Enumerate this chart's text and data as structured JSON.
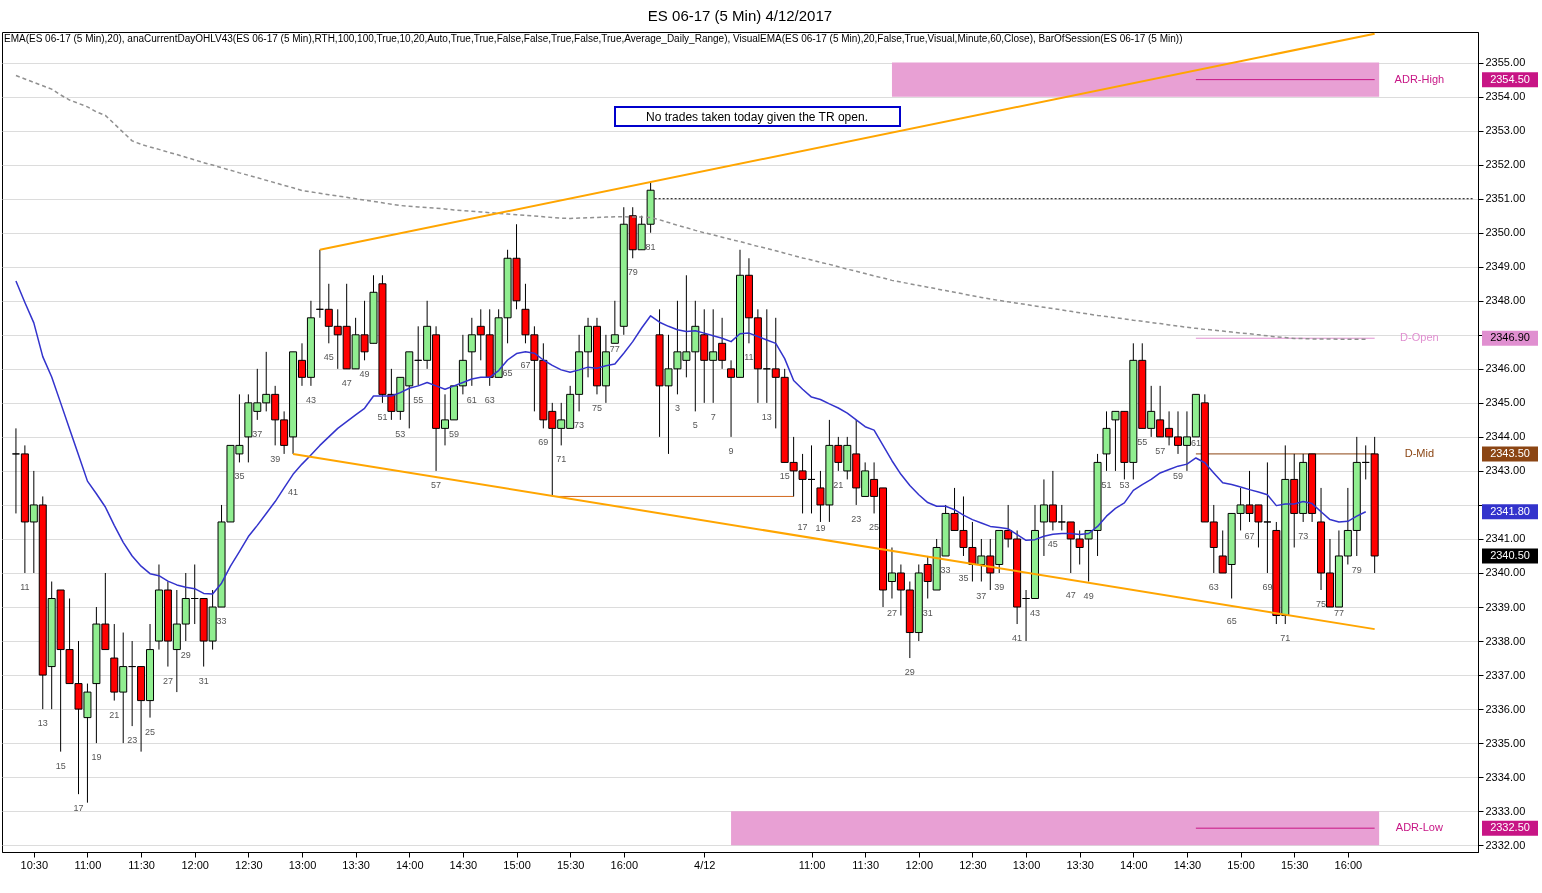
{
  "chart_data": {
    "type": "candlestick",
    "title": "ES 06-17 (5 Min)  4/12/2017",
    "categories": [
      null,
      null,
      "10:30",
      null,
      null,
      null,
      null,
      null,
      "11:00",
      null,
      null,
      null,
      null,
      null,
      "11:30",
      null,
      null,
      null,
      null,
      null,
      "12:00",
      null,
      null,
      null,
      null,
      null,
      "12:30",
      null,
      null,
      null,
      null,
      null,
      "13:00",
      null,
      null,
      null,
      null,
      null,
      "13:30",
      null,
      null,
      null,
      null,
      null,
      "14:00",
      null,
      null,
      null,
      null,
      null,
      "14:30",
      null,
      null,
      null,
      null,
      null,
      "15:00",
      null,
      null,
      null,
      null,
      null,
      "15:30",
      null,
      null,
      null,
      null,
      null,
      "16:00",
      null,
      null,
      null,
      null,
      null,
      null,
      null,
      null,
      "4/12",
      null,
      null,
      null,
      null,
      null,
      null,
      null,
      null,
      null,
      null,
      null,
      "11:00",
      null,
      null,
      null,
      null,
      null,
      "11:30",
      null,
      null,
      null,
      null,
      null,
      "12:00",
      null,
      null,
      null,
      null,
      null,
      "12:30",
      null,
      null,
      null,
      null,
      null,
      "13:00",
      null,
      null,
      null,
      null,
      null,
      "13:30",
      null,
      null,
      null,
      null,
      null,
      "14:00",
      null,
      null,
      null,
      null,
      null,
      "14:30",
      null,
      null,
      null,
      null,
      null,
      "15:00",
      null,
      null,
      null,
      null,
      null,
      "15:30",
      null,
      null,
      null,
      null,
      null,
      "16:00",
      null,
      null,
      null
    ],
    "ohlc": [
      [
        2343.5,
        2344.25,
        2341.75,
        2343.5
      ],
      [
        2343.5,
        2343.75,
        2340,
        2341.5
      ],
      [
        2341.5,
        2343,
        2340,
        2342
      ],
      [
        2342,
        2342.25,
        2336,
        2337
      ],
      [
        2337.25,
        2339.75,
        2336,
        2339.25
      ],
      [
        2339.5,
        2339.5,
        2334.75,
        2337.75
      ],
      [
        2337.75,
        2339.25,
        2336.75,
        2336.75
      ],
      [
        2336.75,
        2338,
        2333.5,
        2336
      ],
      [
        2335.75,
        2336.75,
        2333.25,
        2336.5
      ],
      [
        2336.75,
        2339,
        2335,
        2338.5
      ],
      [
        2338.5,
        2340,
        2337.75,
        2337.75
      ],
      [
        2337.5,
        2338.5,
        2336.25,
        2336.5
      ],
      [
        2336.5,
        2338.25,
        2335,
        2337.25
      ],
      [
        2337.25,
        2338,
        2335.5,
        2337.25
      ],
      [
        2337.25,
        2337.25,
        2334.75,
        2336.25
      ],
      [
        2336.25,
        2338.5,
        2335.75,
        2337.75
      ],
      [
        2338,
        2340.25,
        2337.75,
        2339.5
      ],
      [
        2339.5,
        2339.75,
        2337.25,
        2338
      ],
      [
        2337.75,
        2339.5,
        2336.5,
        2338.5
      ],
      [
        2338.5,
        2340,
        2338,
        2339.25
      ],
      [
        2339.25,
        2340.25,
        2338.5,
        2339.25
      ],
      [
        2339.25,
        2339.25,
        2337.25,
        2338
      ],
      [
        2338,
        2339.5,
        2337.75,
        2339
      ],
      [
        2339,
        2342,
        2339,
        2341.5
      ],
      [
        2341.5,
        2343.75,
        2341.5,
        2343.75
      ],
      [
        2343.5,
        2345.25,
        2343.25,
        2343.75
      ],
      [
        2344,
        2345.25,
        2343.25,
        2345
      ],
      [
        2344.75,
        2346,
        2344.5,
        2345
      ],
      [
        2345,
        2346.5,
        2344.75,
        2345.25
      ],
      [
        2345.25,
        2345.5,
        2343.75,
        2344.5
      ],
      [
        2344.5,
        2344.75,
        2343.5,
        2343.75
      ],
      [
        2344,
        2346.5,
        2343.5,
        2346.5
      ],
      [
        2346.25,
        2346.75,
        2345.5,
        2345.75
      ],
      [
        2345.75,
        2348,
        2345.5,
        2347.5
      ],
      [
        2347.75,
        2349.5,
        2347.5,
        2347.75
      ],
      [
        2347.75,
        2348.5,
        2346.75,
        2347.25
      ],
      [
        2347.25,
        2347.75,
        2346,
        2347
      ],
      [
        2347.25,
        2348.5,
        2346,
        2346
      ],
      [
        2346,
        2347.5,
        2346,
        2347
      ],
      [
        2347,
        2348,
        2346.25,
        2346.5
      ],
      [
        2346.75,
        2348.75,
        2346.75,
        2348.25
      ],
      [
        2348.5,
        2348.75,
        2345,
        2345.25
      ],
      [
        2345.25,
        2346,
        2344.5,
        2344.75
      ],
      [
        2344.75,
        2345.75,
        2344.5,
        2345.75
      ],
      [
        2345.5,
        2346.5,
        2344.25,
        2346.5
      ],
      [
        2346.25,
        2347.25,
        2345.5,
        2346.25
      ],
      [
        2346.25,
        2348,
        2346,
        2347.25
      ],
      [
        2347,
        2347.25,
        2343,
        2344.25
      ],
      [
        2344.25,
        2345.25,
        2343.75,
        2344.5
      ],
      [
        2344.5,
        2345.5,
        2344.5,
        2345.5
      ],
      [
        2345.5,
        2347,
        2345.25,
        2346.25
      ],
      [
        2346.5,
        2347.5,
        2345.5,
        2347
      ],
      [
        2347.25,
        2347.75,
        2346.25,
        2347
      ],
      [
        2347,
        2347.75,
        2345.5,
        2345.75
      ],
      [
        2345.75,
        2347.75,
        2345.75,
        2347.5
      ],
      [
        2347.5,
        2349.5,
        2346.75,
        2349.25
      ],
      [
        2349.25,
        2350.25,
        2347.75,
        2348
      ],
      [
        2347.75,
        2348.5,
        2346.75,
        2347
      ],
      [
        2347,
        2347.25,
        2344.75,
        2346.25
      ],
      [
        2346.25,
        2346.75,
        2344.25,
        2344.5
      ],
      [
        2344.75,
        2345,
        2342.25,
        2344.25
      ],
      [
        2344.25,
        2345,
        2343.75,
        2344.5
      ],
      [
        2344.25,
        2345.5,
        2344.25,
        2345.25
      ],
      [
        2345.25,
        2347,
        2344.75,
        2346.5
      ],
      [
        2346.5,
        2347.5,
        2345.75,
        2347.25
      ],
      [
        2347.25,
        2347.5,
        2345.25,
        2345.5
      ],
      [
        2345.5,
        2347,
        2345,
        2346.5
      ],
      [
        2346.75,
        2348,
        2346.75,
        2347
      ],
      [
        2347.25,
        2350.75,
        2347,
        2350.25
      ],
      [
        2350.5,
        2350.75,
        2349.25,
        2349.5
      ],
      [
        2349.5,
        2350.5,
        2349.5,
        2350.25
      ],
      [
        2350.25,
        2351.5,
        2350,
        2351.25
      ],
      [
        2347,
        2347.75,
        2344,
        2345.5
      ],
      [
        2345.5,
        2347,
        2343.5,
        2346
      ],
      [
        2346,
        2348,
        2345.25,
        2346.5
      ],
      [
        2346.25,
        2348.75,
        2345.75,
        2346.5
      ],
      [
        2346.5,
        2348,
        2344.75,
        2347.25
      ],
      [
        2347,
        2347.75,
        2345,
        2346.25
      ],
      [
        2346.25,
        2347.75,
        2345,
        2346.5
      ],
      [
        2346.75,
        2347.5,
        2346,
        2346.25
      ],
      [
        2346,
        2346.25,
        2344,
        2345.75
      ],
      [
        2345.75,
        2349.5,
        2345.75,
        2348.75
      ],
      [
        2348.75,
        2349.25,
        2346.75,
        2347.5
      ],
      [
        2347.5,
        2347.75,
        2345,
        2346
      ],
      [
        2346,
        2347.75,
        2345,
        2346
      ],
      [
        2346,
        2347.5,
        2344.25,
        2345.75
      ],
      [
        2345.75,
        2346,
        2343.25,
        2343.25
      ],
      [
        2343.25,
        2344,
        2342.25,
        2343
      ],
      [
        2343,
        2343.5,
        2341.75,
        2342.75
      ],
      [
        2342.75,
        2343.75,
        2341.75,
        2342.75
      ],
      [
        2342.5,
        2343,
        2341.5,
        2342
      ],
      [
        2342,
        2344.5,
        2341.5,
        2343.75
      ],
      [
        2343.75,
        2344,
        2343,
        2343.25
      ],
      [
        2343,
        2344,
        2342.75,
        2343.75
      ],
      [
        2343.5,
        2344.5,
        2342,
        2342.5
      ],
      [
        2342.25,
        2343.25,
        2342.25,
        2343
      ],
      [
        2342.75,
        2343.25,
        2341.75,
        2342.25
      ],
      [
        2342.5,
        2342.5,
        2339,
        2339.5
      ],
      [
        2339.75,
        2340.75,
        2339.25,
        2340
      ],
      [
        2340,
        2340.25,
        2338.75,
        2339.5
      ],
      [
        2339.5,
        2339.75,
        2337.5,
        2338.25
      ],
      [
        2338.25,
        2340.25,
        2338,
        2340
      ],
      [
        2340.25,
        2340.5,
        2339.25,
        2339.75
      ],
      [
        2339.5,
        2341,
        2339.5,
        2340.75
      ],
      [
        2340.5,
        2342,
        2340.5,
        2341.75
      ],
      [
        2341.75,
        2342.5,
        2341.25,
        2341.25
      ],
      [
        2341.25,
        2342.25,
        2340.5,
        2340.75
      ],
      [
        2340.75,
        2341.5,
        2339.75,
        2340.25
      ],
      [
        2340.25,
        2341,
        2339.75,
        2340.5
      ],
      [
        2340.5,
        2341,
        2339.5,
        2340
      ],
      [
        2340.25,
        2341.25,
        2340,
        2341.25
      ],
      [
        2341.25,
        2342,
        2340.75,
        2341
      ],
      [
        2341,
        2341.25,
        2338.5,
        2339
      ],
      [
        2339.25,
        2339.5,
        2338,
        2339.25
      ],
      [
        2339.25,
        2342,
        2339.25,
        2341.25
      ],
      [
        2341.5,
        2342.75,
        2340.5,
        2342
      ],
      [
        2342,
        2343,
        2341.25,
        2341.5
      ],
      [
        2341.5,
        2342,
        2341.25,
        2341.5
      ],
      [
        2341.5,
        2341.5,
        2340,
        2341
      ],
      [
        2341,
        2341.25,
        2340.25,
        2340.75
      ],
      [
        2341,
        2341.25,
        2339.75,
        2341.25
      ],
      [
        2341.25,
        2343.5,
        2340.5,
        2343.25
      ],
      [
        2343.5,
        2344.75,
        2343,
        2344.25
      ],
      [
        2344.5,
        2344.75,
        2343,
        2344.75
      ],
      [
        2344.75,
        2344.75,
        2342.75,
        2343.25
      ],
      [
        2343.25,
        2346.75,
        2342.75,
        2346.25
      ],
      [
        2346.25,
        2346.75,
        2344.25,
        2344.25
      ],
      [
        2344.25,
        2345.5,
        2344,
        2344.75
      ],
      [
        2344.5,
        2345.5,
        2344,
        2344
      ],
      [
        2344.25,
        2344.75,
        2343.75,
        2344
      ],
      [
        2344,
        2344.75,
        2343.5,
        2343.75
      ],
      [
        2343.75,
        2344.75,
        2343,
        2344
      ],
      [
        2344,
        2345.25,
        2344,
        2345.25
      ],
      [
        2345,
        2345.25,
        2341.5,
        2341.5
      ],
      [
        2341.5,
        2342,
        2340,
        2340.75
      ],
      [
        2340.5,
        2341.25,
        2340,
        2340
      ],
      [
        2340.25,
        2341.75,
        2339.25,
        2341.75
      ],
      [
        2341.75,
        2342.5,
        2341.25,
        2342
      ],
      [
        2342,
        2343,
        2341.5,
        2341.75
      ],
      [
        2342,
        2342,
        2340.75,
        2341.5
      ],
      [
        2341.5,
        2343.25,
        2340,
        2341.5
      ],
      [
        2341.25,
        2341.5,
        2338.5,
        2338.75
      ],
      [
        2338.75,
        2343.75,
        2338.5,
        2342.75
      ],
      [
        2342.75,
        2343.5,
        2340.75,
        2341.75
      ],
      [
        2341.75,
        2343.5,
        2341.5,
        2343.25
      ],
      [
        2343.5,
        2343.5,
        2341.5,
        2341.75
      ],
      [
        2341.5,
        2342.5,
        2339.5,
        2340
      ],
      [
        2340,
        2341,
        2339,
        2339
      ],
      [
        2339,
        2341.25,
        2339,
        2340.5
      ],
      [
        2340.5,
        2342.5,
        2340.25,
        2341.25
      ],
      [
        2341.25,
        2344,
        2340.5,
        2343.25
      ],
      [
        2343.25,
        2343.75,
        2342.75,
        2343.25
      ],
      [
        2343.5,
        2344,
        2340,
        2340.5
      ]
    ],
    "colors": [
      "#000000",
      "#ff0000",
      "#90ee90",
      "#ff0000",
      "#90ee90",
      "#ff0000",
      "#ff0000",
      "#ff0000",
      "#90ee90",
      "#90ee90",
      "#ff0000",
      "#ff0000",
      "#90ee90",
      "#000000",
      "#ff0000",
      "#90ee90",
      "#90ee90",
      "#ff0000",
      "#90ee90",
      "#90ee90",
      "#000000",
      "#ff0000",
      "#90ee90",
      "#90ee90",
      "#90ee90",
      "#90ee90",
      "#90ee90",
      "#90ee90",
      "#90ee90",
      "#ff0000",
      "#ff0000",
      "#90ee90",
      "#ff0000",
      "#90ee90",
      "#000000",
      "#ff0000",
      "#ff0000",
      "#ff0000",
      "#90ee90",
      "#ff0000",
      "#90ee90",
      "#ff0000",
      "#ff0000",
      "#90ee90",
      "#90ee90",
      "#000000",
      "#90ee90",
      "#ff0000",
      "#90ee90",
      "#90ee90",
      "#90ee90",
      "#90ee90",
      "#ff0000",
      "#ff0000",
      "#90ee90",
      "#90ee90",
      "#ff0000",
      "#ff0000",
      "#ff0000",
      "#ff0000",
      "#ff0000",
      "#90ee90",
      "#90ee90",
      "#90ee90",
      "#90ee90",
      "#ff0000",
      "#90ee90",
      "#90ee90",
      "#90ee90",
      "#ff0000",
      "#90ee90",
      "#90ee90",
      "#ff0000",
      "#90ee90",
      "#90ee90",
      "#90ee90",
      "#90ee90",
      "#ff0000",
      "#90ee90",
      "#ff0000",
      "#ff0000",
      "#90ee90",
      "#ff0000",
      "#ff0000",
      "#000000",
      "#ff0000",
      "#ff0000",
      "#ff0000",
      "#ff0000",
      "#000000",
      "#ff0000",
      "#90ee90",
      "#ff0000",
      "#90ee90",
      "#ff0000",
      "#90ee90",
      "#ff0000",
      "#ff0000",
      "#90ee90",
      "#ff0000",
      "#ff0000",
      "#90ee90",
      "#ff0000",
      "#90ee90",
      "#90ee90",
      "#ff0000",
      "#ff0000",
      "#ff0000",
      "#90ee90",
      "#ff0000",
      "#90ee90",
      "#ff0000",
      "#ff0000",
      "#000000",
      "#90ee90",
      "#90ee90",
      "#ff0000",
      "#000000",
      "#ff0000",
      "#ff0000",
      "#90ee90",
      "#90ee90",
      "#90ee90",
      "#90ee90",
      "#ff0000",
      "#90ee90",
      "#ff0000",
      "#90ee90",
      "#ff0000",
      "#ff0000",
      "#ff0000",
      "#90ee90",
      "#90ee90",
      "#ff0000",
      "#ff0000",
      "#ff0000",
      "#90ee90",
      "#90ee90",
      "#ff0000",
      "#ff0000",
      "#000000",
      "#ff0000",
      "#90ee90",
      "#ff0000",
      "#90ee90",
      "#ff0000",
      "#ff0000",
      "#ff0000",
      "#90ee90",
      "#90ee90",
      "#90ee90",
      "#000000",
      "#ff0000"
    ],
    "value_labels": [
      null,
      "11",
      null,
      "13",
      null,
      "15",
      null,
      "17",
      null,
      "19",
      null,
      "21",
      null,
      "23",
      null,
      "25",
      null,
      "27",
      null,
      "29",
      null,
      "31",
      null,
      "33",
      null,
      "35",
      null,
      "37",
      null,
      "39",
      null,
      "41",
      null,
      "43",
      null,
      "45",
      null,
      "47",
      null,
      "49",
      null,
      "51",
      null,
      "53",
      null,
      "55",
      null,
      "57",
      null,
      "59",
      null,
      "61",
      null,
      "63",
      null,
      "65",
      null,
      "67",
      null,
      "69",
      null,
      "71",
      null,
      "73",
      null,
      "75",
      null,
      "77",
      null,
      "79",
      null,
      "81",
      null,
      null,
      "3",
      null,
      "5",
      null,
      "7",
      null,
      "9",
      null,
      "11",
      null,
      "13",
      null,
      "15",
      null,
      "17",
      null,
      "19",
      null,
      "21",
      null,
      "23",
      null,
      "25",
      null,
      "27",
      null,
      "29",
      null,
      "31",
      null,
      "33",
      null,
      "35",
      null,
      "37",
      null,
      "39",
      null,
      "41",
      null,
      "43",
      null,
      "45",
      null,
      "47",
      null,
      "49",
      null,
      "51",
      null,
      "53",
      null,
      "55",
      null,
      "57",
      null,
      "59",
      null,
      "61",
      null,
      "63",
      null,
      "65",
      null,
      "67",
      null,
      "69",
      null,
      "71",
      null,
      "73",
      null,
      "75",
      null,
      "77",
      null,
      "79",
      null,
      null
    ],
    "series": [
      {
        "type": "line",
        "color": "#3333cc",
        "values": [
          2348.58,
          2347.95,
          2347.35,
          2346.36,
          2345.76,
          2345.0,
          2344.23,
          2343.47,
          2342.7,
          2342.33,
          2341.94,
          2341.4,
          2340.9,
          2340.5,
          2340.2,
          2339.98,
          2339.92,
          2339.76,
          2339.65,
          2339.58,
          2339.54,
          2339.4,
          2339.38,
          2339.7,
          2340.2,
          2340.63,
          2341.07,
          2341.4,
          2341.75,
          2342.1,
          2342.5,
          2342.9,
          2343.2,
          2343.47,
          2343.75,
          2344.0,
          2344.25,
          2344.45,
          2344.65,
          2344.84,
          2345.2,
          2345.2,
          2345.2,
          2345.3,
          2345.43,
          2345.5,
          2345.6,
          2345.5,
          2345.4,
          2345.5,
          2345.6,
          2345.7,
          2345.75,
          2345.75,
          2345.95,
          2346.26,
          2346.45,
          2346.5,
          2346.46,
          2346.26,
          2346.1,
          2345.97,
          2345.9,
          2345.97,
          2346.05,
          2346.02,
          2346.09,
          2346.14,
          2346.46,
          2346.8,
          2347.2,
          2347.56,
          2347.37,
          2347.25,
          2347.15,
          2347.1,
          2347.12,
          2347.05,
          2346.97,
          2346.9,
          2346.8,
          2347.03,
          2347.05,
          2346.95,
          2346.85,
          2346.75,
          2346.3,
          2345.66,
          2345.4,
          2345.17,
          2345.1,
          2344.97,
          2344.85,
          2344.7,
          2344.5,
          2344.3,
          2344.2,
          2343.75,
          2343.3,
          2342.9,
          2342.57,
          2342.3,
          2342.07,
          2341.96,
          2341.96,
          2341.86,
          2341.7,
          2341.57,
          2341.47,
          2341.37,
          2341.34,
          2341.3,
          2341.13,
          2340.96,
          2340.98,
          2341.08,
          2341.14,
          2341.16,
          2341.16,
          2341.13,
          2341.16,
          2341.37,
          2341.67,
          2341.9,
          2342.06,
          2342.43,
          2342.6,
          2342.75,
          2342.94,
          2343.04,
          2343.14,
          2343.2,
          2343.38,
          2343.24,
          2342.94,
          2342.65,
          2342.6,
          2342.53,
          2342.45,
          2342.38,
          2342.3,
          2341.98,
          2342.03,
          2342.03,
          2342.1,
          2342.04,
          2341.8,
          2341.57,
          2341.5,
          2341.52,
          2341.67,
          2341.8,
          null
        ]
      },
      {
        "type": "line",
        "color": "#909090",
        "line_style": "dashed",
        "values": [
          2354.62,
          2354.52,
          2354.42,
          2354.32,
          2354.22,
          2354.05,
          2353.9,
          2353.8,
          2353.7,
          2353.55,
          2353.45,
          2353.2,
          2352.95,
          2352.7,
          2352.6,
          2352.52,
          2352.45,
          2352.37,
          2352.3,
          2352.22,
          2352.14,
          2352.06,
          2351.99,
          2351.91,
          2351.84,
          2351.76,
          2351.69,
          2351.62,
          2351.54,
          2351.47,
          2351.39,
          2351.32,
          2351.24,
          2351.2,
          2351.16,
          2351.12,
          2351.08,
          2351.04,
          2351.0,
          2350.96,
          2350.92,
          2350.88,
          2350.84,
          2350.8,
          2350.78,
          2350.76,
          2350.74,
          2350.72,
          2350.7,
          2350.67,
          2350.65,
          2350.63,
          2350.61,
          2350.59,
          2350.57,
          2350.55,
          2350.53,
          2350.51,
          2350.49,
          2350.47,
          2350.45,
          2350.43,
          2350.42,
          2350.43,
          2350.44,
          2350.45,
          2350.46,
          2350.47,
          2350.47,
          2350.46,
          2350.46,
          2350.45,
          2350.38,
          2350.3,
          2350.22,
          2350.15,
          2350.07,
          2350.0,
          2349.94,
          2349.87,
          2349.8,
          2349.74,
          2349.67,
          2349.6,
          2349.54,
          2349.47,
          2349.4,
          2349.33,
          2349.26,
          2349.2,
          2349.13,
          2349.07,
          2349.0,
          2348.93,
          2348.87,
          2348.8,
          2348.73,
          2348.67,
          2348.6,
          2348.55,
          2348.5,
          2348.45,
          2348.4,
          2348.35,
          2348.3,
          2348.25,
          2348.2,
          2348.15,
          2348.1,
          2348.05,
          2348.01,
          2347.97,
          2347.93,
          2347.89,
          2347.85,
          2347.81,
          2347.77,
          2347.73,
          2347.69,
          2347.65,
          2347.61,
          2347.57,
          2347.54,
          2347.5,
          2347.47,
          2347.43,
          2347.4,
          2347.36,
          2347.33,
          2347.29,
          2347.26,
          2347.22,
          2347.19,
          2347.16,
          2347.14,
          2347.11,
          2347.08,
          2347.05,
          2347.03,
          2347.0,
          2346.97,
          2346.94,
          2346.92,
          2346.89,
          2346.89,
          2346.88,
          2346.88,
          2346.88,
          2346.87,
          2346.87,
          2346.87,
          2346.87,
          null
        ]
      },
      {
        "type": "line",
        "color": "#ffa500",
        "values": [
          null,
          null,
          null,
          null,
          null,
          null,
          null,
          null,
          null,
          null,
          null,
          null,
          null,
          null,
          null,
          null,
          null,
          null,
          null,
          null,
          null,
          null,
          null,
          null,
          null,
          null,
          null,
          null,
          null,
          null,
          null,
          null,
          null,
          null,
          2349.5,
          null,
          null,
          null,
          null,
          null,
          null,
          null,
          null,
          null,
          null,
          null,
          null,
          null,
          null,
          null,
          null,
          null,
          null,
          null,
          null,
          null,
          null,
          null,
          null,
          null,
          null,
          null,
          null,
          null,
          null,
          null,
          null,
          null,
          null,
          null,
          null,
          null,
          null,
          null,
          null,
          null,
          null,
          null,
          null,
          null,
          null,
          null,
          null,
          null,
          null,
          null,
          null,
          null,
          null,
          null,
          null,
          null,
          null,
          null,
          null,
          null,
          null,
          null,
          null,
          null,
          null,
          null,
          null,
          null,
          null,
          null,
          null,
          null,
          null,
          null,
          null,
          null,
          null,
          null,
          null,
          null,
          null,
          null,
          null,
          null,
          null,
          null,
          null,
          null,
          null,
          null,
          null,
          null,
          null,
          null,
          null,
          null,
          null,
          null,
          null,
          null,
          null,
          null,
          null,
          null,
          null,
          null,
          null,
          null,
          null,
          null,
          null,
          null,
          null,
          null,
          null,
          null,
          2355.85
        ]
      },
      {
        "type": "line",
        "color": "#ffa500",
        "values": [
          null,
          null,
          null,
          null,
          null,
          null,
          null,
          null,
          null,
          null,
          null,
          null,
          null,
          null,
          null,
          null,
          null,
          null,
          null,
          null,
          null,
          null,
          null,
          null,
          null,
          null,
          null,
          null,
          null,
          null,
          null,
          2343.5,
          null,
          null,
          null,
          null,
          null,
          null,
          null,
          null,
          null,
          null,
          null,
          null,
          null,
          null,
          null,
          null,
          null,
          null,
          null,
          null,
          null,
          null,
          null,
          null,
          null,
          null,
          null,
          null,
          null,
          null,
          null,
          null,
          null,
          null,
          null,
          null,
          null,
          null,
          null,
          null,
          null,
          null,
          null,
          null,
          null,
          null,
          null,
          null,
          null,
          null,
          null,
          null,
          null,
          null,
          null,
          null,
          null,
          null,
          null,
          null,
          null,
          null,
          null,
          null,
          null,
          null,
          null,
          null,
          null,
          null,
          null,
          null,
          null,
          null,
          null,
          null,
          null,
          null,
          null,
          null,
          null,
          null,
          null,
          null,
          null,
          null,
          null,
          null,
          null,
          null,
          null,
          null,
          null,
          null,
          null,
          null,
          null,
          null,
          null,
          null,
          null,
          null,
          null,
          null,
          null,
          null,
          null,
          null,
          null,
          null,
          null,
          null,
          null,
          null,
          null,
          null,
          null,
          null,
          null,
          null,
          2338.35
        ]
      }
    ],
    "ylim": [
      2331.8,
      2355.9
    ],
    "yticks": [
      {
        "value": 2332,
        "label": "2332.00"
      },
      {
        "value": 2333,
        "label": "2333.00"
      },
      {
        "value": 2334,
        "label": "2334.00"
      },
      {
        "value": 2335,
        "label": "2335.00"
      },
      {
        "value": 2336,
        "label": "2336.00"
      },
      {
        "value": 2337,
        "label": "2337.00"
      },
      {
        "value": 2338,
        "label": "2338.00"
      },
      {
        "value": 2339,
        "label": "2339.00"
      },
      {
        "value": 2340,
        "label": "2340.00"
      },
      {
        "value": 2341,
        "label": "2341.00"
      },
      {
        "value": 2342,
        "label": null
      },
      {
        "value": 2343,
        "label": "2343.00"
      },
      {
        "value": 2344,
        "label": "2344.00"
      },
      {
        "value": 2345,
        "label": "2345.00"
      },
      {
        "value": 2346,
        "label": "2346.00"
      },
      {
        "value": 2347,
        "label": null
      },
      {
        "value": 2348,
        "label": "2348.00"
      },
      {
        "value": 2349,
        "label": "2349.00"
      },
      {
        "value": 2350,
        "label": "2350.00"
      },
      {
        "value": 2351,
        "label": "2351.00"
      },
      {
        "value": 2352,
        "label": "2352.00"
      },
      {
        "value": 2353,
        "label": "2353.00"
      },
      {
        "value": 2354,
        "label": "2354.00"
      },
      {
        "value": 2355,
        "label": "2355.00"
      }
    ],
    "ref_lines": [
      {
        "axis": "y",
        "value": 2354.5,
        "label": "ADR-High",
        "color": "#c71585"
      },
      {
        "axis": "y",
        "value": 2346.9,
        "label": "D-Open",
        "color": "#e08fd0"
      },
      {
        "axis": "y",
        "value": 2343.5,
        "label": "D-Mid",
        "color": "#8b4513"
      },
      {
        "axis": "y",
        "value": 2332.5,
        "label": "ADR-Low",
        "color": "#c71585"
      },
      {
        "axis": "y",
        "value": 2351,
        "color": "#000000",
        "line_style": "dotted"
      },
      {
        "axis": "y",
        "value": 2342.25,
        "color": "#d2691e"
      }
    ],
    "bands": [
      {
        "axis": "y",
        "from": 2354,
        "to": 2355,
        "color": "#e8a0d4"
      },
      {
        "axis": "y",
        "from": 2332,
        "to": 2333,
        "color": "#e8a0d4"
      }
    ],
    "annotations": [
      "EMA(ES 06-17 (5 Min),20), anaCurrentDayOHLV43(ES 06-17 (5 Min),RTH,100,100,True,10,20,Auto,True,True,False,False,True,False,True,Average_Daily_Range), VisualEMA(ES 06-17 (5 Min),20,False,True,Visual,Minute,60,Close), BarOfSession(ES 06-17 (5 Min))",
      "No trades taken today given the TR open.",
      "2354.50",
      "2346.90",
      "2343.50",
      "2332.50",
      "2341.80",
      "2340.50"
    ],
    "grid": "y"
  }
}
